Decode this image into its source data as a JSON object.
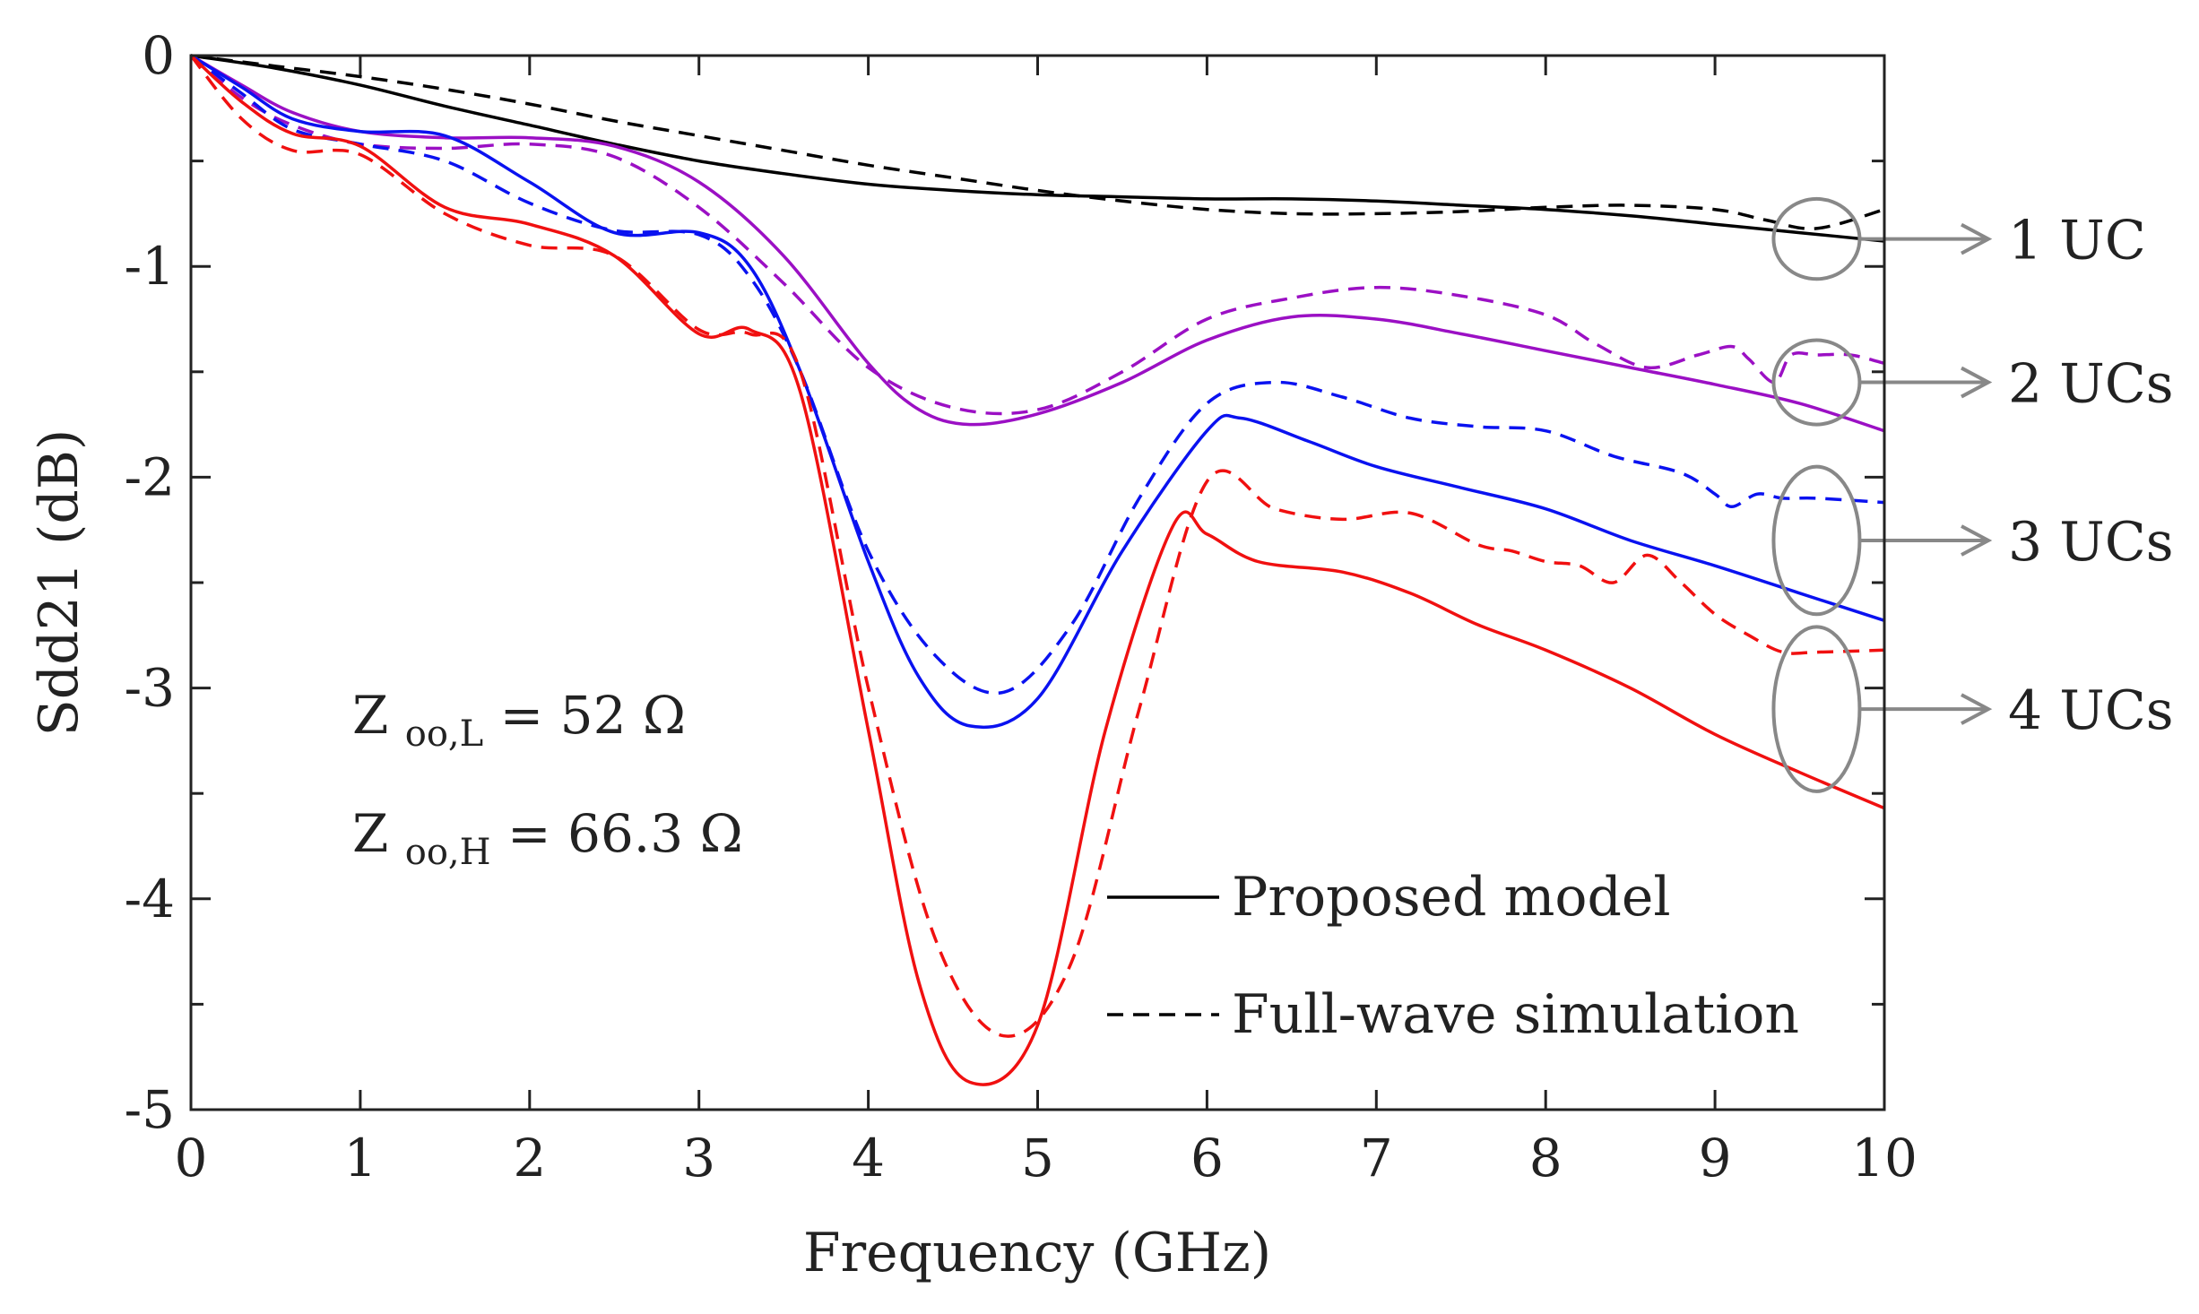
{
  "chart_data": {
    "type": "line",
    "title": "",
    "xlabel": "Frequency (GHz)",
    "ylabel": "Sdd21 (dB)",
    "xlim": [
      0,
      10
    ],
    "ylim": [
      -5,
      0
    ],
    "xticks": [
      0,
      1,
      2,
      3,
      4,
      5,
      6,
      7,
      8,
      9,
      10
    ],
    "xtick_labels": [
      "0",
      "1",
      "2",
      "3",
      "4",
      "5",
      "6",
      "7",
      "8",
      "9",
      "10"
    ],
    "yticks": [
      0,
      -1,
      -2,
      -3,
      -4,
      -5
    ],
    "ytick_labels": [
      "0",
      "-1",
      "-2",
      "-3",
      "-4",
      "-5"
    ],
    "grid": false,
    "legend": {
      "placement": "bottom-right",
      "entries": [
        {
          "label": "Proposed model",
          "style": "solid"
        },
        {
          "label": "Full-wave simulation",
          "style": "dashed"
        }
      ]
    },
    "annotations": {
      "zl_main": "Z",
      "zl_sub": "oo,L",
      "zl_value": " = 52 Ω",
      "zh_main": "Z",
      "zh_sub": "oo,H",
      "zh_value": " = 66.3 Ω"
    },
    "groups": [
      {
        "label": "1 UC",
        "y_data": -0.87,
        "ry": 0.19
      },
      {
        "label": "2 UCs",
        "y_data": -1.55,
        "ry": 0.2
      },
      {
        "label": "3 UCs",
        "y_data": -2.3,
        "ry": 0.35
      },
      {
        "label": "4 UCs",
        "y_data": -3.1,
        "ry": 0.39
      }
    ],
    "colors": {
      "uc1": "#000000",
      "uc2": "#9b10c4",
      "uc3": "#0a12f0",
      "uc4": "#f01010",
      "annotation_gray": "#888888",
      "axis": "#222222"
    },
    "series": [
      {
        "name": "1 UC - Proposed model",
        "color": "#000000",
        "style": "solid",
        "x": [
          0,
          0.5,
          1,
          1.5,
          2,
          2.5,
          3,
          3.5,
          4,
          4.5,
          5,
          5.5,
          6,
          6.5,
          7,
          7.5,
          8,
          8.5,
          9,
          9.5,
          10
        ],
        "y": [
          0,
          -0.06,
          -0.14,
          -0.24,
          -0.33,
          -0.42,
          -0.5,
          -0.56,
          -0.61,
          -0.64,
          -0.66,
          -0.67,
          -0.68,
          -0.68,
          -0.69,
          -0.71,
          -0.73,
          -0.76,
          -0.8,
          -0.84,
          -0.88
        ]
      },
      {
        "name": "1 UC - Full-wave simulation",
        "color": "#000000",
        "style": "dashed",
        "x": [
          0,
          0.5,
          1,
          1.5,
          2,
          2.5,
          3,
          3.5,
          4,
          4.5,
          5,
          5.5,
          6,
          6.5,
          7,
          7.5,
          8,
          8.5,
          9,
          9.3,
          9.6,
          10
        ],
        "y": [
          0,
          -0.05,
          -0.1,
          -0.16,
          -0.23,
          -0.31,
          -0.38,
          -0.45,
          -0.52,
          -0.58,
          -0.64,
          -0.69,
          -0.73,
          -0.75,
          -0.75,
          -0.74,
          -0.72,
          -0.71,
          -0.73,
          -0.78,
          -0.82,
          -0.73
        ]
      },
      {
        "name": "2 UCs - Proposed model",
        "color": "#9b10c4",
        "style": "solid",
        "x": [
          0,
          0.3,
          0.6,
          1,
          1.5,
          2,
          2.5,
          3,
          3.5,
          4,
          4.3,
          4.6,
          5,
          5.5,
          6,
          6.5,
          7,
          7.5,
          8,
          8.5,
          9,
          9.5,
          10
        ],
        "y": [
          0,
          -0.14,
          -0.27,
          -0.36,
          -0.39,
          -0.39,
          -0.43,
          -0.6,
          -0.95,
          -1.46,
          -1.68,
          -1.75,
          -1.7,
          -1.55,
          -1.35,
          -1.24,
          -1.25,
          -1.32,
          -1.4,
          -1.48,
          -1.56,
          -1.65,
          -1.78
        ]
      },
      {
        "name": "2 UCs - Full-wave simulation",
        "color": "#9b10c4",
        "style": "dashed",
        "x": [
          0,
          0.3,
          0.6,
          1,
          1.5,
          2,
          2.5,
          3,
          3.5,
          4,
          4.5,
          5,
          5.5,
          6,
          6.5,
          7,
          7.5,
          8,
          8.3,
          8.6,
          8.9,
          9.1,
          9.2,
          9.35,
          9.45,
          9.6,
          9.8,
          10
        ],
        "y": [
          0,
          -0.2,
          -0.33,
          -0.42,
          -0.44,
          -0.42,
          -0.48,
          -0.72,
          -1.08,
          -1.48,
          -1.67,
          -1.68,
          -1.5,
          -1.25,
          -1.15,
          -1.1,
          -1.14,
          -1.23,
          -1.37,
          -1.48,
          -1.42,
          -1.38,
          -1.44,
          -1.55,
          -1.42,
          -1.42,
          -1.42,
          -1.46
        ]
      },
      {
        "name": "3 UCs - Proposed model",
        "color": "#0a12f0",
        "style": "solid",
        "x": [
          0,
          0.3,
          0.6,
          1,
          1.5,
          2,
          2.5,
          3,
          3.3,
          3.6,
          4,
          4.3,
          4.6,
          5,
          5.5,
          6,
          6.2,
          6.6,
          7,
          7.5,
          8,
          8.5,
          9,
          9.5,
          10
        ],
        "y": [
          0,
          -0.15,
          -0.3,
          -0.36,
          -0.38,
          -0.6,
          -0.84,
          -0.84,
          -1.0,
          -1.5,
          -2.4,
          -2.95,
          -3.18,
          -3.05,
          -2.35,
          -1.78,
          -1.72,
          -1.83,
          -1.95,
          -2.05,
          -2.15,
          -2.3,
          -2.42,
          -2.55,
          -2.68
        ]
      },
      {
        "name": "3 UCs - Full-wave simulation",
        "color": "#0a12f0",
        "style": "dashed",
        "x": [
          0,
          0.3,
          0.6,
          1,
          1.5,
          2,
          2.5,
          3,
          3.3,
          3.6,
          4,
          4.4,
          4.8,
          5.2,
          5.6,
          6,
          6.4,
          6.8,
          7.2,
          7.6,
          8,
          8.4,
          8.8,
          9,
          9.1,
          9.25,
          9.4,
          9.6,
          10
        ],
        "y": [
          0,
          -0.18,
          -0.35,
          -0.42,
          -0.5,
          -0.7,
          -0.83,
          -0.85,
          -1.05,
          -1.5,
          -2.35,
          -2.85,
          -3.02,
          -2.7,
          -2.1,
          -1.65,
          -1.55,
          -1.62,
          -1.72,
          -1.76,
          -1.78,
          -1.9,
          -1.98,
          -2.08,
          -2.14,
          -2.08,
          -2.1,
          -2.1,
          -2.12
        ]
      },
      {
        "name": "4 UCs - Proposed model",
        "color": "#f01010",
        "style": "solid",
        "x": [
          0,
          0.3,
          0.6,
          1,
          1.5,
          2,
          2.5,
          3,
          3.3,
          3.6,
          4,
          4.3,
          4.6,
          5,
          5.4,
          5.8,
          6,
          6.3,
          6.8,
          7.2,
          7.6,
          8,
          8.5,
          9,
          9.5,
          10
        ],
        "y": [
          0,
          -0.22,
          -0.37,
          -0.43,
          -0.72,
          -0.8,
          -0.95,
          -1.32,
          -1.3,
          -1.6,
          -3.2,
          -4.4,
          -4.87,
          -4.6,
          -3.2,
          -2.23,
          -2.27,
          -2.4,
          -2.45,
          -2.55,
          -2.7,
          -2.82,
          -3.0,
          -3.22,
          -3.4,
          -3.57
        ]
      },
      {
        "name": "4 UCs - Full-wave simulation",
        "color": "#f01010",
        "style": "dashed",
        "x": [
          0,
          0.3,
          0.6,
          1,
          1.5,
          2,
          2.5,
          3,
          3.3,
          3.6,
          4,
          4.4,
          4.8,
          5.2,
          5.6,
          6,
          6.4,
          6.8,
          7.2,
          7.6,
          7.8,
          8,
          8.2,
          8.4,
          8.6,
          8.8,
          9.0,
          9.2,
          9.4,
          9.6,
          10
        ],
        "y": [
          0,
          -0.3,
          -0.45,
          -0.47,
          -0.75,
          -0.9,
          -0.95,
          -1.3,
          -1.32,
          -1.5,
          -3.0,
          -4.2,
          -4.65,
          -4.3,
          -3.1,
          -2.02,
          -2.15,
          -2.2,
          -2.17,
          -2.32,
          -2.35,
          -2.4,
          -2.42,
          -2.5,
          -2.37,
          -2.5,
          -2.65,
          -2.75,
          -2.83,
          -2.83,
          -2.82
        ]
      }
    ]
  }
}
